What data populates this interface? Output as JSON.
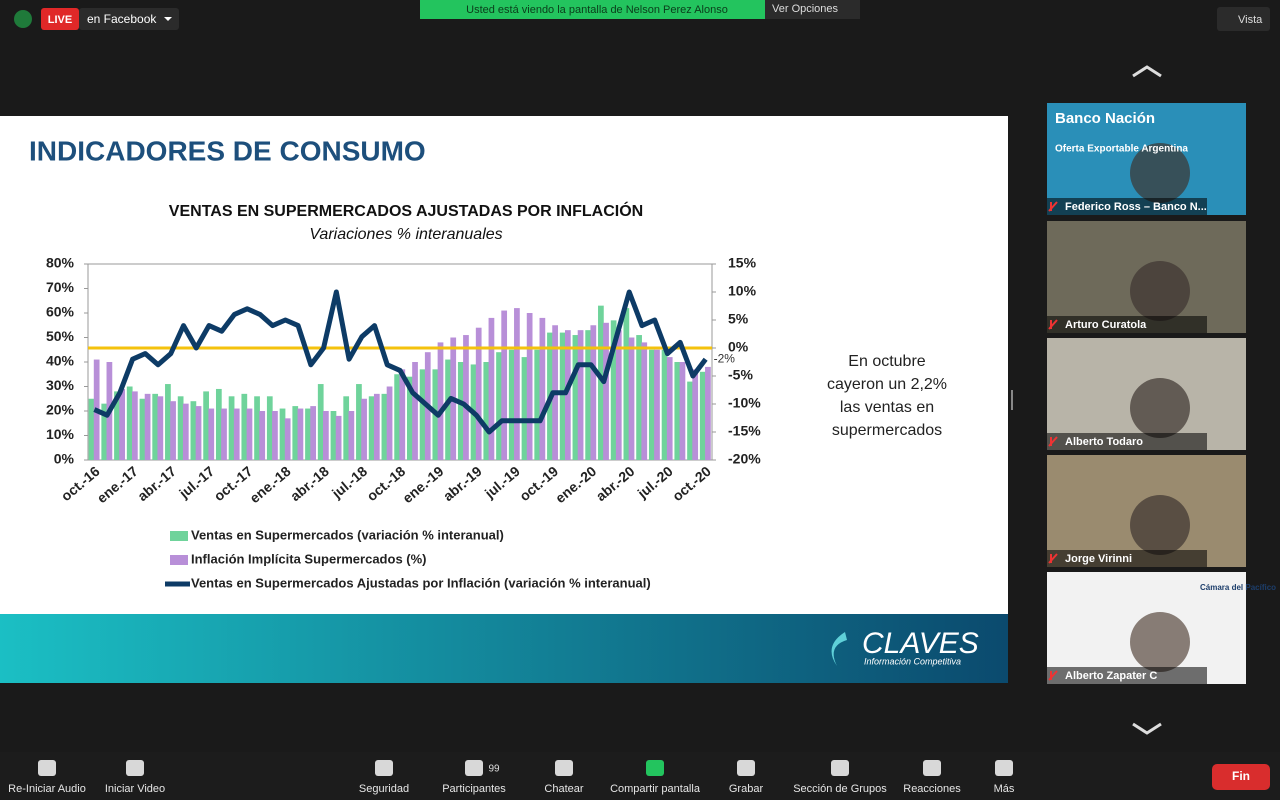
{
  "top_bar": {
    "live": "LIVE",
    "stream": "en Facebook",
    "banner": "Usted está viendo la pantalla de Nelson Perez Alonso",
    "view_options": "Ver Opciones",
    "view": "Vista"
  },
  "slide": {
    "heading": "INDICADORES DE CONSUMO",
    "note": [
      "En octubre",
      "cayeron un 2,2%",
      "las ventas en",
      "supermercados"
    ],
    "logo": "CLAVES",
    "logo_sub": "Información Competitiva"
  },
  "chart_data": {
    "type": "combo",
    "title": "VENTAS EN SUPERMERCADOS AJUSTADAS POR INFLACIÓN",
    "subtitle": "Variaciones % interanuales",
    "categories": [
      "oct.-16",
      null,
      null,
      "ene.-17",
      null,
      null,
      "abr.-17",
      null,
      null,
      "jul.-17",
      null,
      null,
      "oct.-17",
      null,
      null,
      "ene.-18",
      null,
      null,
      "abr.-18",
      null,
      null,
      "jul.-18",
      null,
      null,
      "oct.-18",
      null,
      null,
      "ene.-19",
      null,
      null,
      "abr.-19",
      null,
      null,
      "jul.-19",
      null,
      null,
      "oct.-19",
      null,
      null,
      "ene.-20",
      null,
      null,
      "abr.-20",
      null,
      null,
      "jul.-20",
      null,
      null,
      "oct.-20"
    ],
    "series": [
      {
        "name": "Ventas en Supermercados (variación % interanual)",
        "kind": "bar",
        "color": "#6fd39b",
        "values": [
          25,
          23,
          28,
          30,
          25,
          27,
          31,
          26,
          24,
          28,
          29,
          26,
          27,
          26,
          26,
          21,
          22,
          21,
          31,
          20,
          26,
          31,
          26,
          27,
          35,
          34,
          37,
          37,
          41,
          40,
          39,
          40,
          44,
          45,
          42,
          45,
          52,
          52,
          51,
          53,
          63,
          57,
          62,
          51,
          45,
          45,
          40,
          32,
          36
        ]
      },
      {
        "name": "Inflación Implícita Supermercados (%)",
        "kind": "bar",
        "color": "#b88fd8",
        "values": [
          41,
          40,
          29,
          28,
          27,
          26,
          24,
          23,
          22,
          21,
          21,
          21,
          21,
          20,
          20,
          17,
          21,
          22,
          20,
          18,
          20,
          25,
          27,
          30,
          37,
          40,
          44,
          48,
          50,
          51,
          54,
          58,
          61,
          62,
          60,
          58,
          55,
          53,
          53,
          55,
          56,
          53,
          50,
          48,
          45,
          42,
          40,
          37,
          38
        ]
      },
      {
        "name": "Ventas en Supermercados Ajustadas por Inflación (variación % interanual)",
        "kind": "line",
        "axis": "y2",
        "color": "#0d3b66",
        "values": [
          -11,
          -12,
          -8,
          -2,
          -1,
          -3,
          -1,
          4,
          0,
          4,
          3,
          6,
          7,
          6,
          4,
          5,
          4,
          -3,
          0,
          10,
          -2,
          2,
          4,
          -3,
          -4,
          -8,
          -10,
          -12,
          -9,
          -10,
          -12,
          -15,
          -13,
          -13,
          -13,
          -13,
          -8,
          -8,
          -3,
          -3,
          -6,
          2,
          10,
          4,
          5,
          -1,
          1,
          -5,
          -2
        ],
        "value_labels": [
          null,
          null,
          null,
          null,
          null,
          null,
          null,
          null,
          null,
          null,
          null,
          null,
          null,
          null,
          null,
          null,
          null,
          null,
          null,
          null,
          null,
          null,
          null,
          null,
          null,
          null,
          null,
          null,
          null,
          null,
          null,
          null,
          null,
          null,
          null,
          null,
          null,
          null,
          null,
          null,
          null,
          null,
          null,
          null,
          null,
          null,
          null,
          null,
          "-2%"
        ]
      }
    ],
    "ylim": [
      0,
      80
    ],
    "yticks": [
      {
        "value": 0,
        "label": "0%"
      },
      {
        "value": 10,
        "label": "10%"
      },
      {
        "value": 20,
        "label": "20%"
      },
      {
        "value": 30,
        "label": "30%"
      },
      {
        "value": 40,
        "label": "40%"
      },
      {
        "value": 50,
        "label": "50%"
      },
      {
        "value": 60,
        "label": "60%"
      },
      {
        "value": 70,
        "label": "70%"
      },
      {
        "value": 80,
        "label": "80%"
      }
    ],
    "y2lim": [
      -20,
      15
    ],
    "y2ticks": [
      {
        "value": -20,
        "label": "-20%"
      },
      {
        "value": -15,
        "label": "-15%"
      },
      {
        "value": -10,
        "label": "-10%"
      },
      {
        "value": -5,
        "label": "-5%"
      },
      {
        "value": 0,
        "label": "0%"
      },
      {
        "value": 5,
        "label": "5%"
      },
      {
        "value": 10,
        "label": "10%"
      },
      {
        "value": 15,
        "label": "15%"
      }
    ],
    "reference_line": {
      "value": 0,
      "axis": "y2",
      "color": "#f4c20d"
    },
    "grid": false,
    "legend": "bottom"
  },
  "participants": [
    {
      "name": "Federico Ross – Banco N...",
      "overlay": [
        "Banco Nación",
        "Oferta Exportable Argentina"
      ]
    },
    {
      "name": "Arturo Curatola"
    },
    {
      "name": "Alberto Todaro"
    },
    {
      "name": "Jorge Virinni"
    },
    {
      "name": "Alberto Zapater C",
      "overlay": [
        "Cámara del Pacífico"
      ]
    }
  ],
  "toolbar": {
    "items": [
      "Re-Iniciar Audio",
      "Iniciar Video",
      "Seguridad",
      "Participantes",
      "Chatear",
      "Compartir pantalla",
      "Grabar",
      "Sección de Grupos",
      "Reacciones",
      "Más"
    ],
    "participants_count": "99",
    "end": "Fin"
  }
}
